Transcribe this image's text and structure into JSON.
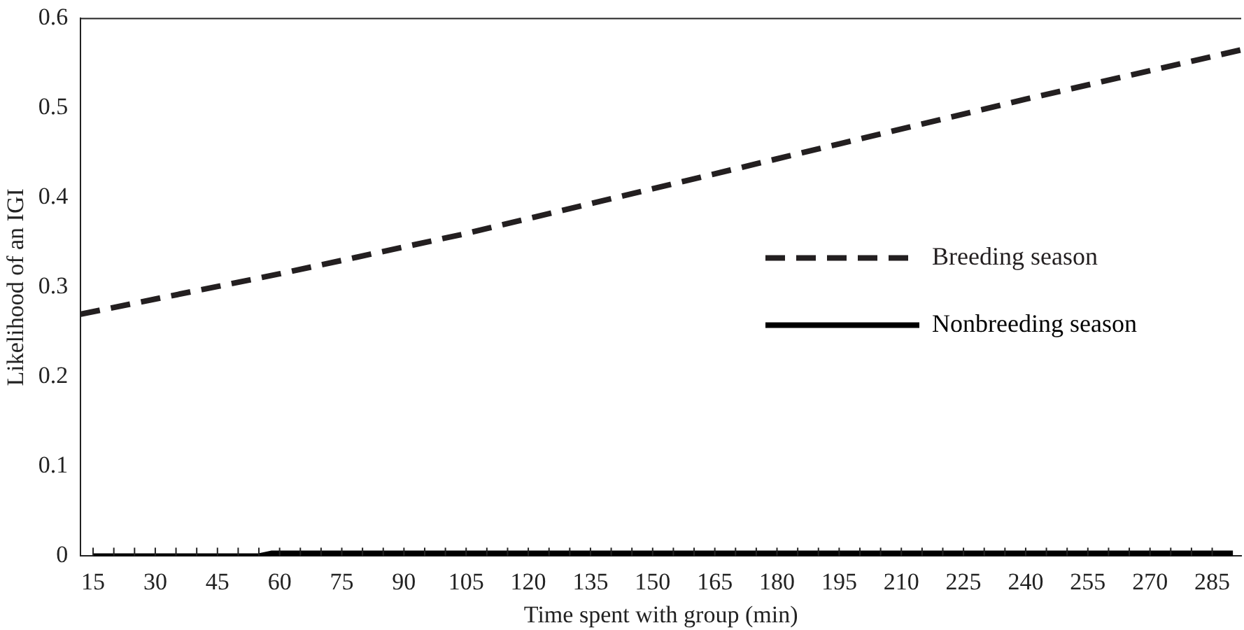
{
  "chart_data": {
    "type": "line",
    "xlabel": "Time spent with group (min)",
    "ylabel": "Likelihood of an IGI",
    "xlim": [
      12,
      292
    ],
    "ylim": [
      0,
      0.6
    ],
    "xticks": [
      15,
      {
        "value": 20,
        "label": null
      },
      {
        "value": 25,
        "label": null
      },
      30,
      {
        "value": 35,
        "label": null
      },
      {
        "value": 40,
        "label": null
      },
      45,
      {
        "value": 50,
        "label": null
      },
      {
        "value": 55,
        "label": null
      },
      60,
      {
        "value": 65,
        "label": null
      },
      {
        "value": 70,
        "label": null
      },
      75,
      {
        "value": 80,
        "label": null
      },
      {
        "value": 85,
        "label": null
      },
      90,
      {
        "value": 95,
        "label": null
      },
      {
        "value": 100,
        "label": null
      },
      105,
      {
        "value": 110,
        "label": null
      },
      {
        "value": 115,
        "label": null
      },
      120,
      {
        "value": 125,
        "label": null
      },
      {
        "value": 130,
        "label": null
      },
      135,
      {
        "value": 140,
        "label": null
      },
      {
        "value": 145,
        "label": null
      },
      150,
      {
        "value": 155,
        "label": null
      },
      {
        "value": 160,
        "label": null
      },
      165,
      {
        "value": 170,
        "label": null
      },
      {
        "value": 175,
        "label": null
      },
      180,
      {
        "value": 185,
        "label": null
      },
      {
        "value": 190,
        "label": null
      },
      195,
      {
        "value": 200,
        "label": null
      },
      {
        "value": 205,
        "label": null
      },
      210,
      {
        "value": 215,
        "label": null
      },
      {
        "value": 220,
        "label": null
      },
      225,
      {
        "value": 230,
        "label": null
      },
      {
        "value": 235,
        "label": null
      },
      240,
      {
        "value": 245,
        "label": null
      },
      {
        "value": 250,
        "label": null
      },
      255,
      {
        "value": 260,
        "label": null
      },
      {
        "value": 265,
        "label": null
      },
      270,
      {
        "value": 275,
        "label": null
      },
      {
        "value": 280,
        "label": null
      },
      285
    ],
    "yticks": [
      0,
      0.1,
      0.2,
      0.3,
      0.4,
      0.5,
      0.6
    ],
    "grid": false,
    "legend": "right",
    "marker": "none",
    "series": [
      {
        "name": "Breeding season",
        "color": "#231f20",
        "line_style": "dashed",
        "x": [
          12,
          60,
          105,
          150,
          195,
          240,
          292
        ],
        "values": [
          0.27,
          0.315,
          0.36,
          0.41,
          0.46,
          0.51,
          0.565
        ]
      },
      {
        "name": "Nonbreeding season",
        "color": "#000000",
        "line_style": "solid",
        "x": [
          15,
          55,
          58,
          290
        ],
        "values": [
          0,
          0,
          0.003,
          0.003
        ]
      }
    ]
  }
}
